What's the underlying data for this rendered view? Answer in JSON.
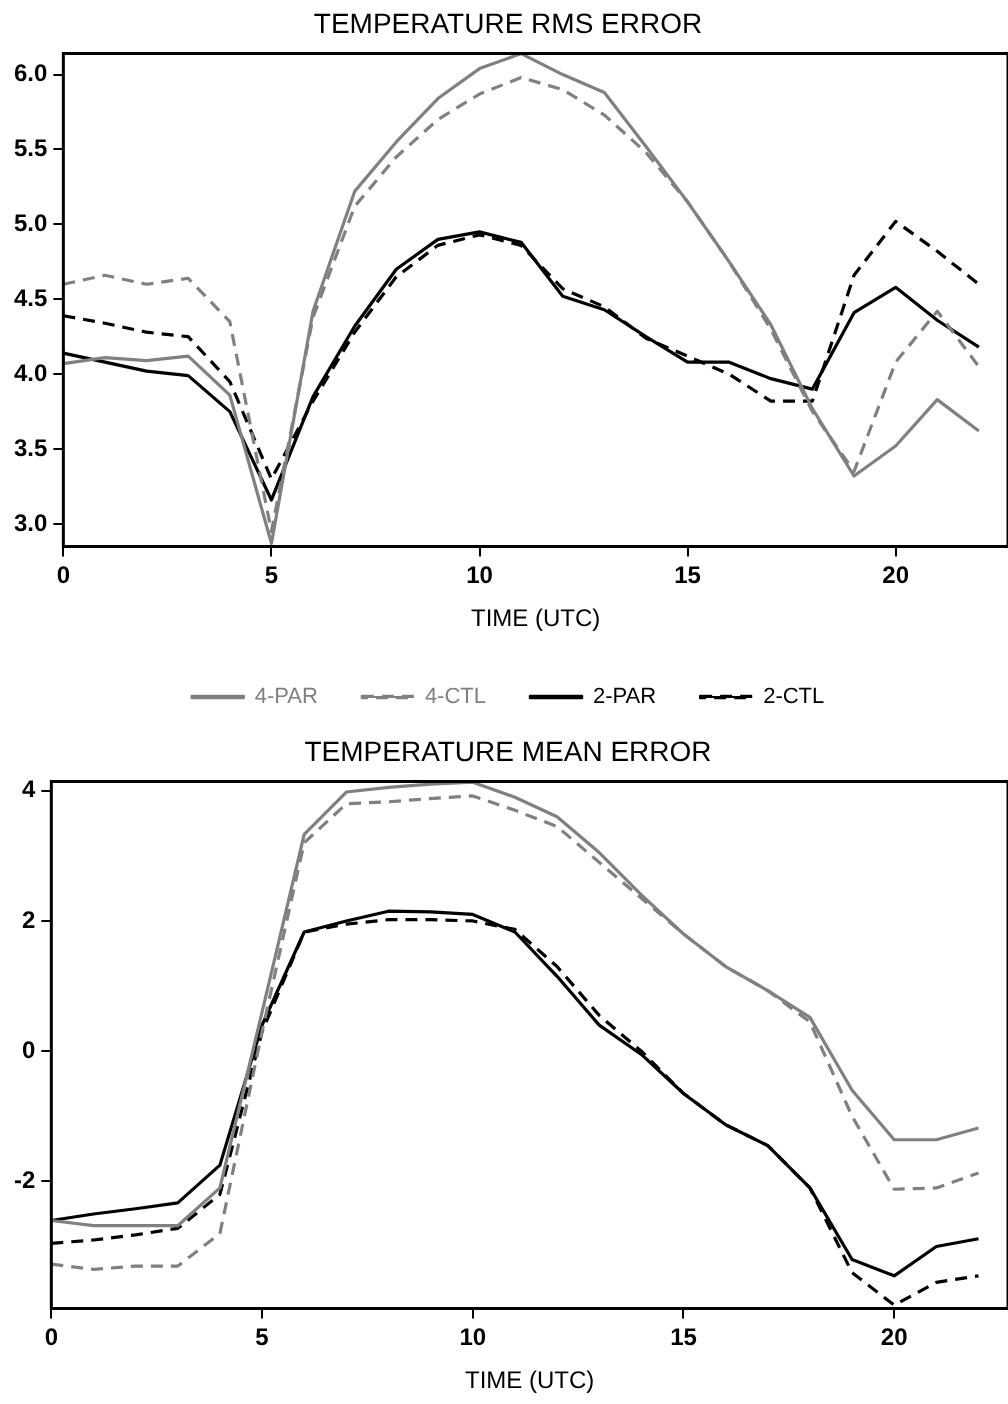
{
  "chart_data": [
    {
      "type": "line",
      "title": "TEMPERATURE RMS ERROR",
      "xlabel": "TIME (UTC)",
      "x": [
        0,
        1,
        2,
        3,
        4,
        5,
        6,
        7,
        8,
        9,
        10,
        11,
        12,
        13,
        14,
        15,
        16,
        17,
        18,
        19,
        20,
        21,
        22
      ],
      "xlim": [
        0,
        22.7
      ],
      "xticks": [
        0,
        5,
        10,
        15,
        20
      ],
      "ylim": [
        2.85,
        6.14
      ],
      "yticks": [
        {
          "value": 3,
          "label": "3.0"
        },
        {
          "value": 3.5,
          "label": "3.5"
        },
        {
          "value": 4,
          "label": "4.0"
        },
        {
          "value": 4.5,
          "label": "4.5"
        },
        {
          "value": 5,
          "label": "5.0"
        },
        {
          "value": 5.5,
          "label": "5.5"
        },
        {
          "value": 6,
          "label": "6.0"
        }
      ],
      "grid": false,
      "legend": "bottom",
      "marker": "none",
      "series": [
        {
          "name": "4-PAR",
          "color": "#808080",
          "line_style": "solid",
          "values": [
            4.07,
            4.11,
            4.09,
            4.12,
            3.86,
            2.87,
            4.42,
            5.22,
            5.55,
            5.84,
            6.04,
            6.14,
            6.0,
            5.88,
            5.52,
            5.15,
            4.75,
            4.33,
            3.77,
            3.32,
            3.52,
            3.83,
            3.62
          ]
        },
        {
          "name": "4-CTL",
          "color": "#808080",
          "line_style": "dashed",
          "values": [
            4.6,
            4.66,
            4.6,
            4.64,
            4.35,
            2.95,
            4.38,
            5.12,
            5.45,
            5.7,
            5.87,
            5.98,
            5.9,
            5.73,
            5.48,
            5.15,
            4.75,
            4.3,
            3.75,
            3.35,
            4.08,
            4.42,
            4.05
          ]
        },
        {
          "name": "2-PAR",
          "color": "#000000",
          "line_style": "solid",
          "values": [
            4.14,
            4.08,
            4.02,
            3.99,
            3.75,
            3.16,
            3.85,
            4.32,
            4.7,
            4.9,
            4.95,
            4.88,
            4.52,
            4.43,
            4.25,
            4.08,
            4.08,
            3.97,
            3.9,
            4.41,
            4.58,
            4.36,
            4.18
          ]
        },
        {
          "name": "2-CTL",
          "color": "#000000",
          "line_style": "dashed",
          "values": [
            4.39,
            4.34,
            4.28,
            4.25,
            3.95,
            3.3,
            3.82,
            4.28,
            4.65,
            4.86,
            4.93,
            4.86,
            4.57,
            4.45,
            4.24,
            4.12,
            4.0,
            3.82,
            3.82,
            4.66,
            5.02,
            4.82,
            4.6
          ]
        }
      ]
    },
    {
      "type": "line",
      "title": "TEMPERATURE MEAN ERROR",
      "xlabel": "TIME (UTC)",
      "x": [
        0,
        1,
        2,
        3,
        4,
        5,
        6,
        7,
        8,
        9,
        10,
        11,
        12,
        13,
        14,
        15,
        16,
        17,
        18,
        19,
        20,
        21,
        22
      ],
      "xlim": [
        0,
        22.7
      ],
      "xticks": [
        0,
        5,
        10,
        15,
        20
      ],
      "ylim": [
        -3.95,
        4.14
      ],
      "yticks": [
        -2,
        0,
        2,
        4
      ],
      "grid": false,
      "legend": false,
      "marker": "none",
      "series": [
        {
          "color": "#808080",
          "line_style": "solid",
          "values": [
            -2.6,
            -2.68,
            -2.68,
            -2.68,
            -2.1,
            0.6,
            3.33,
            3.98,
            4.05,
            4.1,
            4.13,
            3.9,
            3.6,
            3.05,
            2.4,
            1.8,
            1.3,
            0.93,
            0.52,
            -0.6,
            -1.36,
            -1.36,
            -1.18
          ]
        },
        {
          "color": "#808080",
          "line_style": "dashed",
          "values": [
            -3.27,
            -3.35,
            -3.3,
            -3.3,
            -2.8,
            0.3,
            3.2,
            3.8,
            3.83,
            3.88,
            3.92,
            3.7,
            3.45,
            2.9,
            2.35,
            1.8,
            1.3,
            0.93,
            0.45,
            -1.0,
            -2.12,
            -2.1,
            -1.87
          ]
        },
        {
          "color": "#000000",
          "line_style": "solid",
          "values": [
            -2.6,
            -2.5,
            -2.42,
            -2.33,
            -1.75,
            0.4,
            1.83,
            2.0,
            2.15,
            2.14,
            2.1,
            1.83,
            1.15,
            0.4,
            -0.05,
            -0.65,
            -1.13,
            -1.45,
            -2.1,
            -3.2,
            -3.45,
            -3.0,
            -2.88
          ]
        },
        {
          "color": "#000000",
          "line_style": "dashed",
          "values": [
            -2.95,
            -2.9,
            -2.82,
            -2.72,
            -2.2,
            0.3,
            1.83,
            1.95,
            2.02,
            2.02,
            2.0,
            1.87,
            1.3,
            0.55,
            0.0,
            -0.65,
            -1.13,
            -1.45,
            -2.1,
            -3.4,
            -3.9,
            -3.55,
            -3.45
          ]
        }
      ]
    }
  ]
}
